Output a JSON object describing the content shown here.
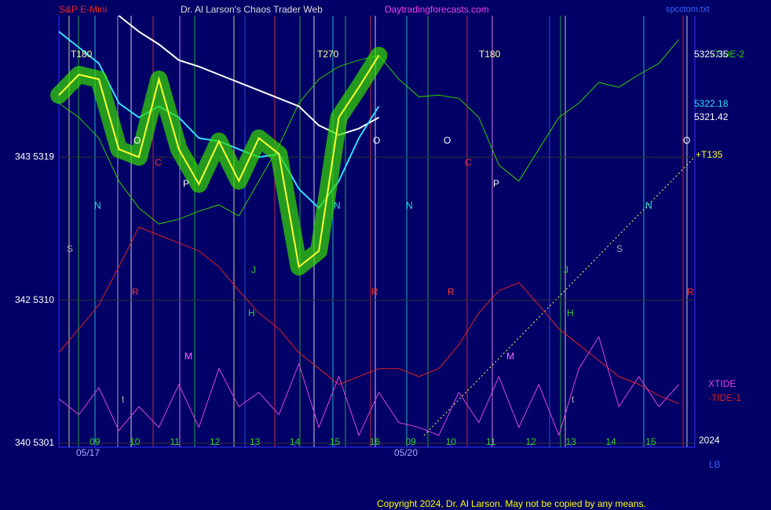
{
  "chart_data": {
    "type": "line",
    "title": "S&P E-Mini",
    "subtitle": "Dr. Al Larson's Chaos Trader Web",
    "site": "Daytradingforecasts.com",
    "file": "spcctom.txt",
    "copyright": "Copyright 2024, Dr. Al Larson. May not be copied by any means.",
    "dates": [
      "05/17",
      "05/20"
    ],
    "year": "2024",
    "corner_label": "LB",
    "x": [
      0,
      0.5,
      1,
      1.5,
      2,
      2.5,
      3,
      3.5,
      4,
      4.5,
      5,
      5.5,
      6,
      6.5,
      7,
      7.5,
      8,
      8.5,
      9,
      9.5,
      10,
      10.5,
      11,
      11.5,
      12,
      12.5,
      13,
      13.5,
      14,
      14.5,
      15,
      15.5
    ],
    "xlim": [
      0,
      15.9
    ],
    "xticks": [
      {
        "value": 0.9,
        "label": "09"
      },
      {
        "value": 1.9,
        "label": "10"
      },
      {
        "value": 2.9,
        "label": "11"
      },
      {
        "value": 3.9,
        "label": "12"
      },
      {
        "value": 4.9,
        "label": "13"
      },
      {
        "value": 5.9,
        "label": "14"
      },
      {
        "value": 6.9,
        "label": "15"
      },
      {
        "value": 7.9,
        "label": "16"
      },
      {
        "value": 8.8,
        "label": "09"
      },
      {
        "value": 9.8,
        "label": "10"
      },
      {
        "value": 10.8,
        "label": "11"
      },
      {
        "value": 11.8,
        "label": "12"
      },
      {
        "value": 12.8,
        "label": "13"
      },
      {
        "value": 13.8,
        "label": "14"
      },
      {
        "value": 14.8,
        "label": "15"
      }
    ],
    "ylim": [
      5300.75,
      5327.9
    ],
    "yticks": [
      {
        "value": 5319,
        "label": "343  5319"
      },
      {
        "value": 5310,
        "label": "342  5310"
      },
      {
        "value": 5301,
        "label": "340  5301"
      }
    ],
    "grid": true,
    "series": [
      {
        "name": "-TIDE-2",
        "color": "#33cc00",
        "width": 1,
        "values": [
          5322.4,
          5321.5,
          5320.2,
          5317.5,
          5315.8,
          5314.8,
          5315.1,
          5315.6,
          5316,
          5315.3,
          5317.5,
          5319.7,
          5322.4,
          5323.9,
          5324.7,
          5325.1,
          5325.4,
          5323.9,
          5322.8,
          5322.9,
          5322.7,
          5321.5,
          5318.5,
          5317.5,
          5319.5,
          5321.5,
          5322.4,
          5323.7,
          5323.4,
          5324.2,
          5324.9,
          5326.4
        ]
      },
      {
        "name": "-TIDE-1",
        "color": "#dd2222",
        "width": 1,
        "values": [
          5306.7,
          5308.2,
          5309.7,
          5312.1,
          5314.6,
          5314.1,
          5313.6,
          5313.1,
          5312.1,
          5310.6,
          5309.2,
          5308.2,
          5306.7,
          5305.7,
          5304.7,
          5305.2,
          5305.7,
          5305.7,
          5305.2,
          5305.7,
          5307.2,
          5309.2,
          5310.6,
          5311.1,
          5309.7,
          5308.2,
          5307.2,
          5306.2,
          5305.2,
          5304.7,
          5304,
          5303.5
        ]
      },
      {
        "name": "XTIDE",
        "color": "#dd44dd",
        "width": 1,
        "values": [
          5303.8,
          5302.8,
          5304.5,
          5301.8,
          5303.3,
          5302,
          5304.7,
          5302,
          5305.7,
          5303.3,
          5304.2,
          5302.8,
          5306,
          5302,
          5305.2,
          5301.5,
          5304.2,
          5302.3,
          5302,
          5301.5,
          5304.2,
          5302.3,
          5305.2,
          5302,
          5304.7,
          5301.5,
          5305.7,
          5307.7,
          5303.3,
          5305.2,
          5303.3,
          5304.7
        ]
      },
      {
        "color": "#ffffff",
        "width": 2,
        "values": [
          null,
          null,
          null,
          5327.9,
          5326.9,
          5326.1,
          5325.1,
          5324.7,
          5324.2,
          5323.7,
          5323.2,
          5322.7,
          5322.2,
          5321,
          5320.4,
          5320.8,
          5321.5,
          null,
          null,
          null,
          null,
          null,
          null,
          null,
          null,
          null,
          null,
          null,
          null,
          null,
          null,
          null
        ]
      },
      {
        "color": "#33ddff",
        "width": 2,
        "values": [
          5326.9,
          5325.9,
          5324.9,
          5322.4,
          5321.5,
          5322.2,
          5321.5,
          5320.2,
          5320,
          5319.5,
          5319,
          5319.2,
          5317,
          5315.8,
          5317.5,
          5320.2,
          5322.2,
          null,
          null,
          null,
          null,
          null,
          null,
          null,
          null,
          null,
          null,
          null,
          null,
          null,
          null,
          null
        ]
      },
      {
        "color": "#ffff33",
        "width": 2,
        "glow": "#33dd00",
        "values": [
          5322.9,
          5324.2,
          5323.9,
          5319.5,
          5319,
          5323.9,
          5319.5,
          5317.3,
          5320,
          5317.5,
          5320.2,
          5319.2,
          5312.1,
          5313.1,
          5321.5,
          5323.4,
          5325.4,
          null,
          null,
          null,
          null,
          null,
          null,
          null,
          null,
          null,
          null,
          null,
          null,
          null,
          null,
          null
        ]
      }
    ],
    "right_labels": [
      "5325.35",
      "5322.18",
      "5321.42",
      "+T135"
    ],
    "annotations": [
      "T180",
      "T270",
      "T180",
      "O",
      "O",
      "O",
      "O",
      "C",
      "C",
      "P",
      "P",
      "N",
      "N",
      "N",
      "N",
      "S",
      "S",
      "R",
      "R",
      "R",
      "R",
      "M",
      "M",
      "J",
      "J",
      "H",
      "H",
      "t",
      "t"
    ]
  }
}
